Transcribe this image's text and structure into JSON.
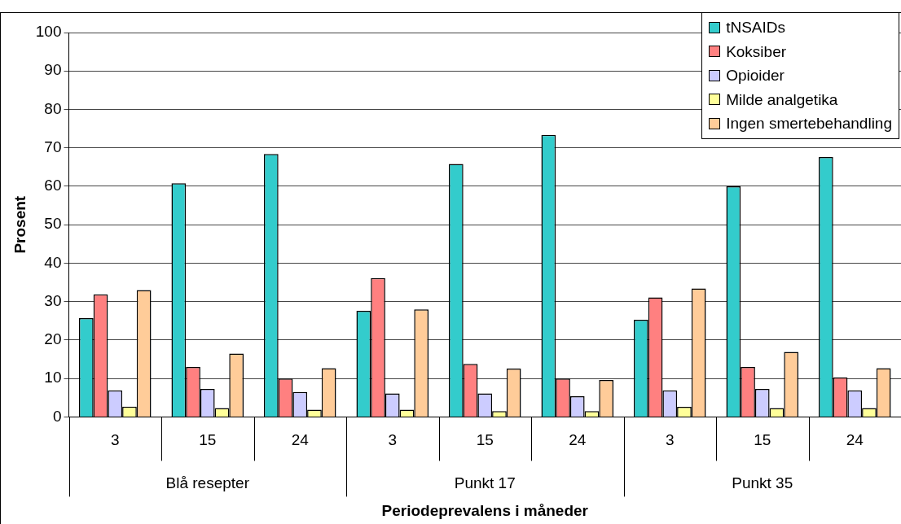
{
  "chart_data": {
    "type": "bar",
    "xlabel": "Periodeprevalens i måneder",
    "ylabel": "Prosent",
    "categories": [
      "3",
      "15",
      "24",
      "3",
      "15",
      "24",
      "3",
      "15",
      "24"
    ],
    "annotations": [
      "Blå resepter",
      "Punkt 17",
      "Punkt 35"
    ],
    "series": [
      {
        "name": "tNSAIDs",
        "color": "#33cccc",
        "values": [
          25.7,
          60.8,
          68.4,
          27.6,
          65.8,
          73.4,
          25.3,
          60,
          67.6
        ]
      },
      {
        "name": "Koksiber",
        "color": "#ff8080",
        "values": [
          31.9,
          13,
          10,
          36.1,
          13.8,
          10,
          31.1,
          13,
          10.3
        ]
      },
      {
        "name": "Opioider",
        "color": "#ccccff",
        "values": [
          6.9,
          7.3,
          6.5,
          6.1,
          6.1,
          5.4,
          6.9,
          7.3,
          6.9
        ]
      },
      {
        "name": "Milde analgetika",
        "color": "#ffff99",
        "values": [
          2.7,
          2.3,
          1.9,
          1.9,
          1.5,
          1.5,
          2.6,
          2.3,
          2.3
        ]
      },
      {
        "name": "Ingen smertebehandling",
        "color": "#ffcc99",
        "values": [
          33,
          16.5,
          12.7,
          28,
          12.6,
          9.6,
          33.4,
          16.9,
          12.7
        ]
      }
    ],
    "ylim": [
      0,
      100
    ],
    "yticks": [
      0,
      10,
      20,
      30,
      40,
      50,
      60,
      70,
      80,
      90,
      100
    ],
    "grid": "y",
    "legend": "top right"
  }
}
